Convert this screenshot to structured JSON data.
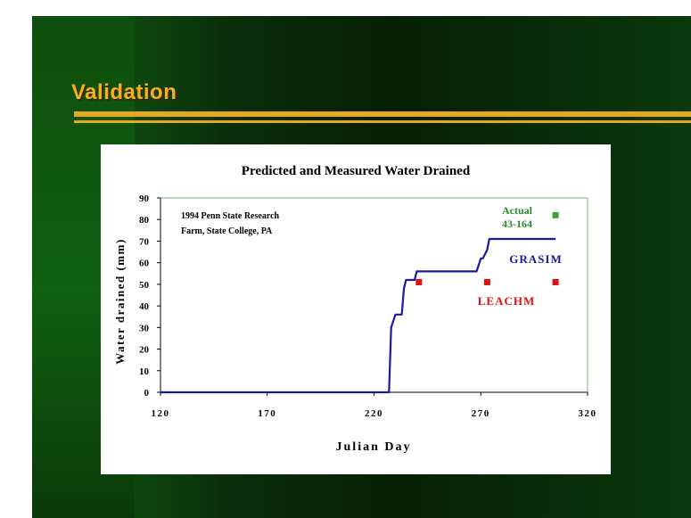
{
  "slide": {
    "title": "Validation"
  },
  "chart_data": {
    "type": "line",
    "title": "Predicted and Measured Water Drained",
    "xlabel": "Julian Day",
    "ylabel": "Water drained (mm)",
    "xlim": [
      120,
      320
    ],
    "ylim": [
      0,
      90
    ],
    "xticks": [
      120,
      170,
      220,
      270,
      320
    ],
    "yticks": [
      0,
      10,
      20,
      30,
      40,
      50,
      60,
      70,
      80,
      90
    ],
    "annotation": [
      "1994 Penn State Research",
      "Farm, State College, PA"
    ],
    "grid": false,
    "series": [
      {
        "name": "GRASIM",
        "type": "line",
        "color": "#1a1aa0",
        "x": [
          120,
          227,
          228,
          229,
          230,
          233,
          234,
          235,
          239,
          240,
          268,
          269,
          270,
          271,
          272,
          273,
          274,
          305
        ],
        "y": [
          0,
          0,
          30,
          33,
          36,
          36,
          48,
          52,
          52,
          56,
          56,
          59,
          62,
          62,
          64,
          66,
          71,
          71
        ]
      },
      {
        "name": "LEACHM",
        "type": "scatter",
        "color": "#e01010",
        "x": [
          241,
          273,
          305
        ],
        "y": [
          51,
          51,
          51
        ]
      },
      {
        "name": "Actual",
        "subname": "43-164",
        "type": "scatter",
        "color": "#3aa03a",
        "x": [
          305
        ],
        "y": [
          82
        ]
      }
    ]
  }
}
